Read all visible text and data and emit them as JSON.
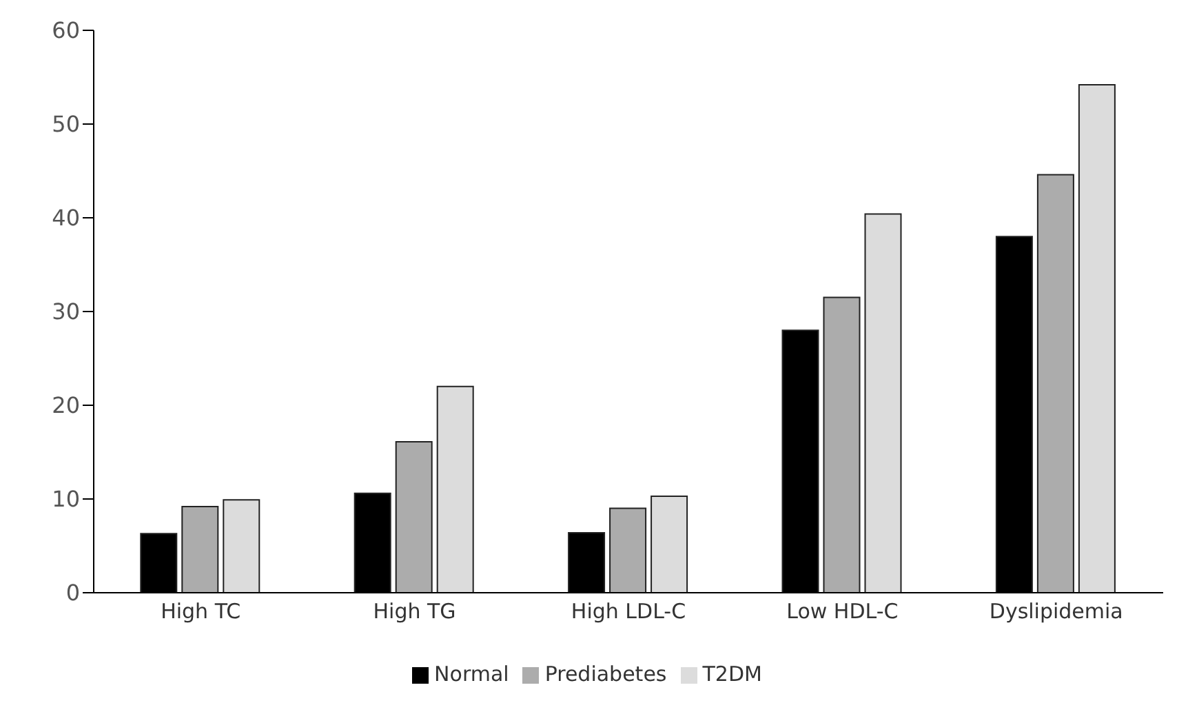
{
  "chart_data": {
    "type": "bar",
    "categories": [
      "High TC",
      "High TG",
      "High LDL-C",
      "Low HDL-C",
      "Dyslipidemia"
    ],
    "series": [
      {
        "name": "Normal",
        "color": "#000000",
        "values": [
          6.3,
          10.6,
          6.4,
          28.0,
          38.0
        ]
      },
      {
        "name": "Prediabetes",
        "color": "#acacac",
        "values": [
          9.2,
          16.1,
          9.0,
          31.5,
          44.6
        ]
      },
      {
        "name": "T2DM",
        "color": "#dcdcdc",
        "values": [
          9.9,
          22.0,
          10.3,
          40.4,
          54.2
        ]
      }
    ],
    "ylim": [
      0,
      60
    ],
    "yticks": [
      0,
      10,
      20,
      30,
      40,
      50,
      60
    ],
    "grid": false,
    "legend": "bottom"
  }
}
